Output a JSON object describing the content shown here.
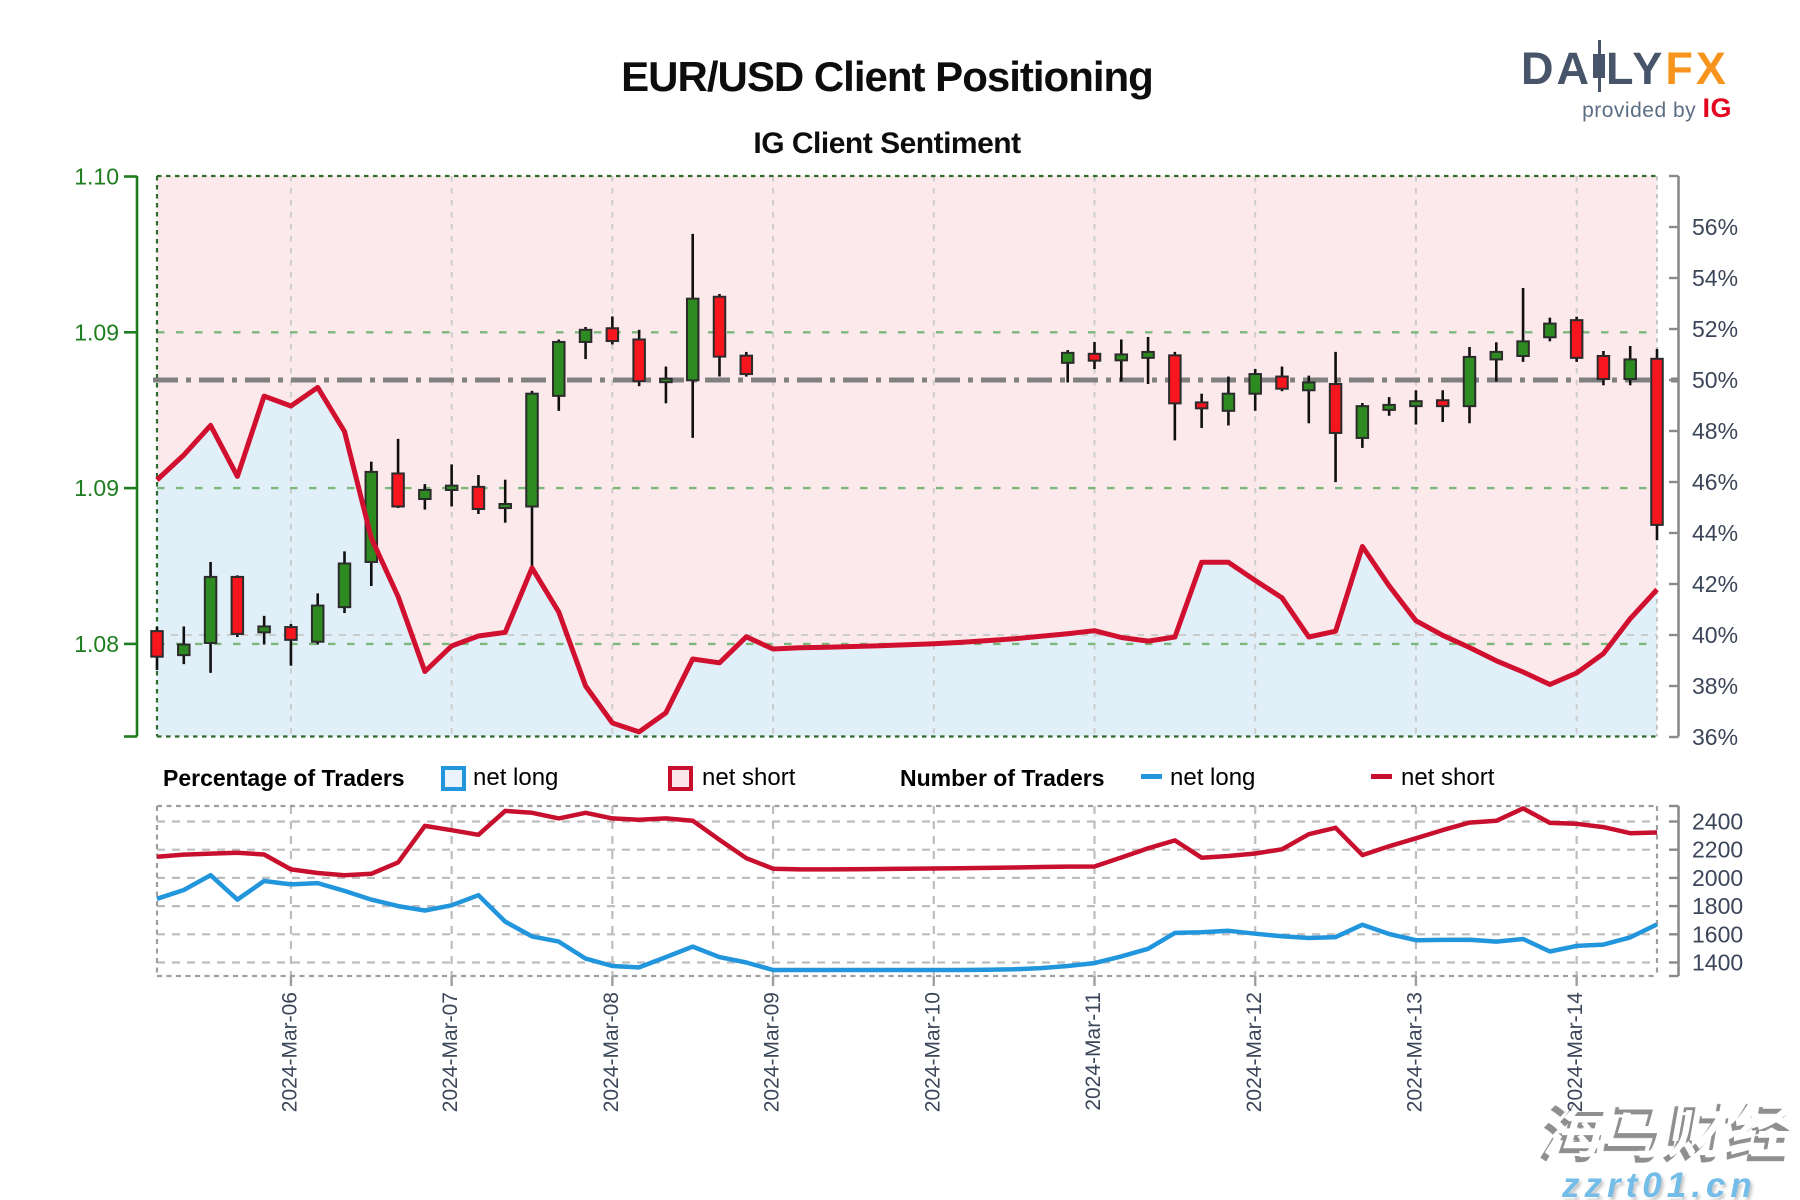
{
  "page": {
    "title": "EUR/USD Client Positioning",
    "subtitle": "IG Client Sentiment",
    "logo": {
      "word_part1": "DA",
      "word_part2": "LY",
      "word_accent": "FX",
      "tagline": "provided by",
      "tagline_brand": "IG",
      "color_word": "#47546a",
      "color_accent": "#f7941e",
      "color_brand": "#e40521",
      "color_tagline": "#5c6e84"
    },
    "watermark": {
      "line1": "海马财经",
      "line2": "zzrt01.cn",
      "line2_color": "#74bde8"
    }
  },
  "legend": {
    "pct_group_label": "Percentage of Traders",
    "pct_net_long_label": "net long",
    "pct_net_short_label": "net short",
    "num_group_label": "Number of Traders",
    "num_net_long_label": "net long",
    "num_net_short_label": "net short",
    "net_long_color": "#2196dd",
    "net_short_color": "#c8102e",
    "net_long_fill": "#eaf3fb",
    "net_short_fill": "#fbe7ea"
  },
  "chart_data": {
    "type": "candlestick+line",
    "title": "EUR/USD Client Positioning",
    "subtitle": "IG Client Sentiment",
    "time_axis": {
      "start": "2024-03-05 04:00",
      "step_hours": 4,
      "count": 57,
      "tick_labels": [
        "2024-Mar-06",
        "2024-Mar-07",
        "2024-Mar-08",
        "2024-Mar-09",
        "2024-Mar-10",
        "2024-Mar-11",
        "2024-Mar-12",
        "2024-Mar-13",
        "2024-Mar-14"
      ],
      "tick_indices": [
        5,
        11,
        17,
        23,
        29,
        35,
        41,
        47,
        53
      ]
    },
    "main_chart": {
      "price_axis": {
        "tick_labels": [
          "1.10",
          "1.09",
          "1.09",
          "1.08"
        ],
        "tick_values": [
          1.1,
          1.095,
          1.09,
          1.085
        ],
        "grid_values": [
          1.095,
          1.09,
          1.085
        ],
        "ylim": [
          1.08203,
          1.1
        ],
        "color": "#1e7d1e"
      },
      "pct_axis": {
        "tick_labels": [
          "56%",
          "54%",
          "52%",
          "50%",
          "48%",
          "46%",
          "44%",
          "42%",
          "40%",
          "38%",
          "36%"
        ],
        "tick_values": [
          56,
          54,
          52,
          50,
          48,
          46,
          44,
          42,
          40,
          38,
          36
        ],
        "ylim": [
          36,
          58
        ],
        "mid_line_pct": 50,
        "gray_grid_pct": 40
      },
      "candles_ohlc": {
        "format": [
          "time_index",
          "open",
          "high",
          "low",
          "close"
        ],
        "data": [
          [
            0,
            1.08541,
            1.08554,
            1.08416,
            1.08459
          ],
          [
            1,
            1.08464,
            1.08556,
            1.08435,
            1.08498
          ],
          [
            2,
            1.08503,
            1.08763,
            1.08407,
            1.08715
          ],
          [
            3,
            1.08715,
            1.0872,
            1.08522,
            1.08532
          ],
          [
            4,
            1.08537,
            1.0859,
            1.08498,
            1.08556
          ],
          [
            5,
            1.08554,
            1.08564,
            1.0843,
            1.08513
          ],
          [
            6,
            1.08507,
            1.08662,
            1.08498,
            1.08623
          ],
          [
            7,
            1.08618,
            1.08797,
            1.08599,
            1.08758
          ],
          [
            8,
            1.08763,
            1.09085,
            1.08686,
            1.09052
          ],
          [
            9,
            1.09047,
            1.09158,
            1.08936,
            1.08941
          ],
          [
            10,
            1.08965,
            1.09013,
            1.08931,
            1.08994
          ],
          [
            11,
            1.08994,
            1.09076,
            1.08941,
            1.09008
          ],
          [
            12,
            1.09004,
            1.09042,
            1.08917,
            1.08933
          ],
          [
            13,
            1.08936,
            1.09027,
            1.08889,
            1.08949
          ],
          [
            14,
            1.08941,
            1.09312,
            1.08747,
            1.09303
          ],
          [
            15,
            1.09296,
            1.09477,
            1.09248,
            1.09469
          ],
          [
            16,
            1.09469,
            1.09517,
            1.09414,
            1.09508
          ],
          [
            17,
            1.09513,
            1.09551,
            1.09461,
            1.09472
          ],
          [
            18,
            1.09477,
            1.09508,
            1.09327,
            1.09343
          ],
          [
            19,
            1.0934,
            1.0939,
            1.09272,
            1.09351
          ],
          [
            20,
            1.09346,
            1.09816,
            1.09161,
            1.09608
          ],
          [
            21,
            1.09614,
            1.09623,
            1.09358,
            1.09422
          ],
          [
            22,
            1.09425,
            1.09437,
            1.09358,
            1.09366
          ],
          [
            34,
            1.09402,
            1.09443,
            1.09339,
            1.09434
          ],
          [
            35,
            1.09431,
            1.09469,
            1.09382,
            1.09409
          ],
          [
            36,
            1.0941,
            1.09477,
            1.09342,
            1.09429
          ],
          [
            37,
            1.09418,
            1.09485,
            1.09334,
            1.09437
          ],
          [
            38,
            1.09426,
            1.09437,
            1.09153,
            1.09272
          ],
          [
            39,
            1.09275,
            1.09303,
            1.09193,
            1.09256
          ],
          [
            40,
            1.09248,
            1.09358,
            1.09201,
            1.09303
          ],
          [
            41,
            1.09303,
            1.09382,
            1.09248,
            1.09366
          ],
          [
            42,
            1.09358,
            1.0939,
            1.09311,
            1.09319
          ],
          [
            43,
            1.09314,
            1.09361,
            1.09208,
            1.09339
          ],
          [
            44,
            1.09334,
            1.09437,
            1.09019,
            1.09177
          ],
          [
            45,
            1.09161,
            1.09273,
            1.09129,
            1.09263
          ],
          [
            46,
            1.09251,
            1.09292,
            1.09232,
            1.09267
          ],
          [
            47,
            1.09263,
            1.09314,
            1.09204,
            1.09279
          ],
          [
            48,
            1.09282,
            1.09314,
            1.09212,
            1.09263
          ],
          [
            49,
            1.09263,
            1.09453,
            1.09208,
            1.09421
          ],
          [
            50,
            1.09413,
            1.09468,
            1.09342,
            1.09437
          ],
          [
            51,
            1.09424,
            1.09642,
            1.09405,
            1.09471
          ],
          [
            52,
            1.09484,
            1.09547,
            1.09471,
            1.09528
          ],
          [
            53,
            1.09539,
            1.0955,
            1.09405,
            1.09418
          ],
          [
            54,
            1.09424,
            1.0944,
            1.0933,
            1.0935
          ],
          [
            55,
            1.0935,
            1.09456,
            1.0933,
            1.09413
          ],
          [
            56,
            1.09415,
            1.09447,
            1.08833,
            1.08882
          ]
        ]
      },
      "net_short_pct_line": [
        46.08,
        47.06,
        48.22,
        46.22,
        49.37,
        48.98,
        49.71,
        47.98,
        43.8,
        41.51,
        38.57,
        39.57,
        39.96,
        40.1,
        42.63,
        40.9,
        38.0,
        36.55,
        36.2,
        36.95,
        39.06,
        38.91,
        39.93,
        39.45,
        39.5,
        39.52,
        39.55,
        39.58,
        39.62,
        39.66,
        39.71,
        39.78,
        39.85,
        39.95,
        40.05,
        40.17,
        39.9,
        39.76,
        39.92,
        42.85,
        42.85,
        42.14,
        41.46,
        39.92,
        40.15,
        43.47,
        41.93,
        40.56,
        39.99,
        39.51,
        38.99,
        38.55,
        38.06,
        38.51,
        39.27,
        40.64,
        41.78
      ],
      "colors": {
        "candle_up": "#2e8b22",
        "candle_down": "#f7151e",
        "candle_edge": "#2b2b2b",
        "wick": "#101010",
        "sentiment_line": "#d10f2e",
        "fill_above_line": "#fce9eb",
        "fill_below_line": "#e1eff9",
        "mid_line": "#808080"
      }
    },
    "traders_chart": {
      "y_axis": {
        "tick_labels": [
          "2400",
          "2200",
          "2000",
          "1800",
          "1600",
          "1400"
        ],
        "tick_values": [
          2400,
          2200,
          2000,
          1800,
          1600,
          1400
        ],
        "ylim": [
          1304,
          2510
        ]
      },
      "net_long": [
        1852,
        1914,
        2019,
        1846,
        1978,
        1954,
        1963,
        1908,
        1846,
        1800,
        1769,
        1806,
        1877,
        1690,
        1585,
        1548,
        1428,
        1375,
        1365,
        1438,
        1513,
        1438,
        1400,
        1347,
        1347,
        1347,
        1347,
        1347,
        1347,
        1347,
        1347,
        1348,
        1352,
        1360,
        1375,
        1396,
        1443,
        1497,
        1610,
        1615,
        1625,
        1604,
        1586,
        1574,
        1580,
        1668,
        1602,
        1558,
        1560,
        1561,
        1548,
        1567,
        1478,
        1518,
        1527,
        1578,
        1670
      ],
      "net_short": [
        2150,
        2165,
        2172,
        2178,
        2166,
        2060,
        2035,
        2019,
        2029,
        2110,
        2369,
        2338,
        2306,
        2475,
        2462,
        2422,
        2462,
        2422,
        2412,
        2422,
        2406,
        2270,
        2140,
        2065,
        2060,
        2060,
        2061,
        2063,
        2065,
        2067,
        2069,
        2071,
        2074,
        2077,
        2080,
        2081,
        2145,
        2210,
        2266,
        2143,
        2155,
        2173,
        2203,
        2310,
        2355,
        2162,
        2224,
        2281,
        2339,
        2392,
        2405,
        2493,
        2390,
        2384,
        2360,
        2317,
        2322
      ],
      "colors": {
        "net_long": "#2196dd",
        "net_short": "#c8102e"
      }
    }
  }
}
